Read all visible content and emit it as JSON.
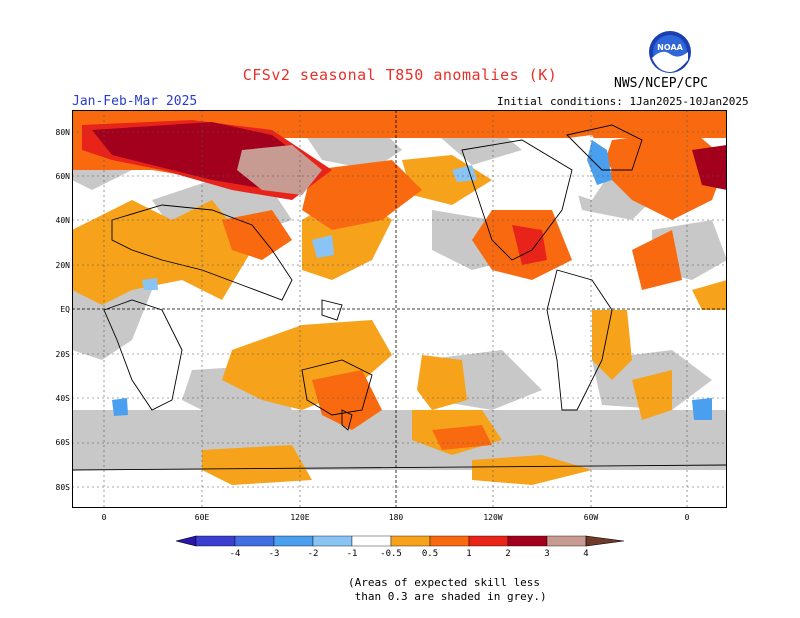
{
  "title": "CFSv2 seasonal T850 anomalies (K)",
  "organization": "NWS/NCEP/CPC",
  "logo_text": "NOAA",
  "period": "Jan-Feb-Mar 2025",
  "initial_conditions": "Initial conditions: 1Jan2025-10Jan2025",
  "lat_labels": [
    "80N",
    "60N",
    "40N",
    "20N",
    "EQ",
    "20S",
    "40S",
    "60S",
    "80S"
  ],
  "lon_labels": [
    "0",
    "60E",
    "120E",
    "180",
    "120W",
    "60W",
    "0"
  ],
  "colorbar": {
    "labels": [
      "-4",
      "-3",
      "-2",
      "-1",
      "-0.5",
      "0.5",
      "1",
      "2",
      "3",
      "4"
    ],
    "colors": [
      "#2a16a8",
      "#3b3fd0",
      "#3f6fe0",
      "#4aa0ee",
      "#8ac4f5",
      "#ffffff",
      "#f7a21b",
      "#f96a10",
      "#e8241a",
      "#a3001e",
      "#c79a92",
      "#6e3b2a"
    ]
  },
  "footnote": "(Areas of expected skill less\n than 0.3 are shaded in grey.)",
  "colors": {
    "grey_low_skill": "#c8c8c8",
    "orange_05_1": "#f7a21b",
    "orange_red_1_2": "#f96a10",
    "red_2_3": "#e8241a",
    "dark_red_3_4": "#a3001e",
    "pink_4plus": "#c79a92",
    "light_blue": "#8ac4f5",
    "mid_blue": "#4aa0ee"
  }
}
